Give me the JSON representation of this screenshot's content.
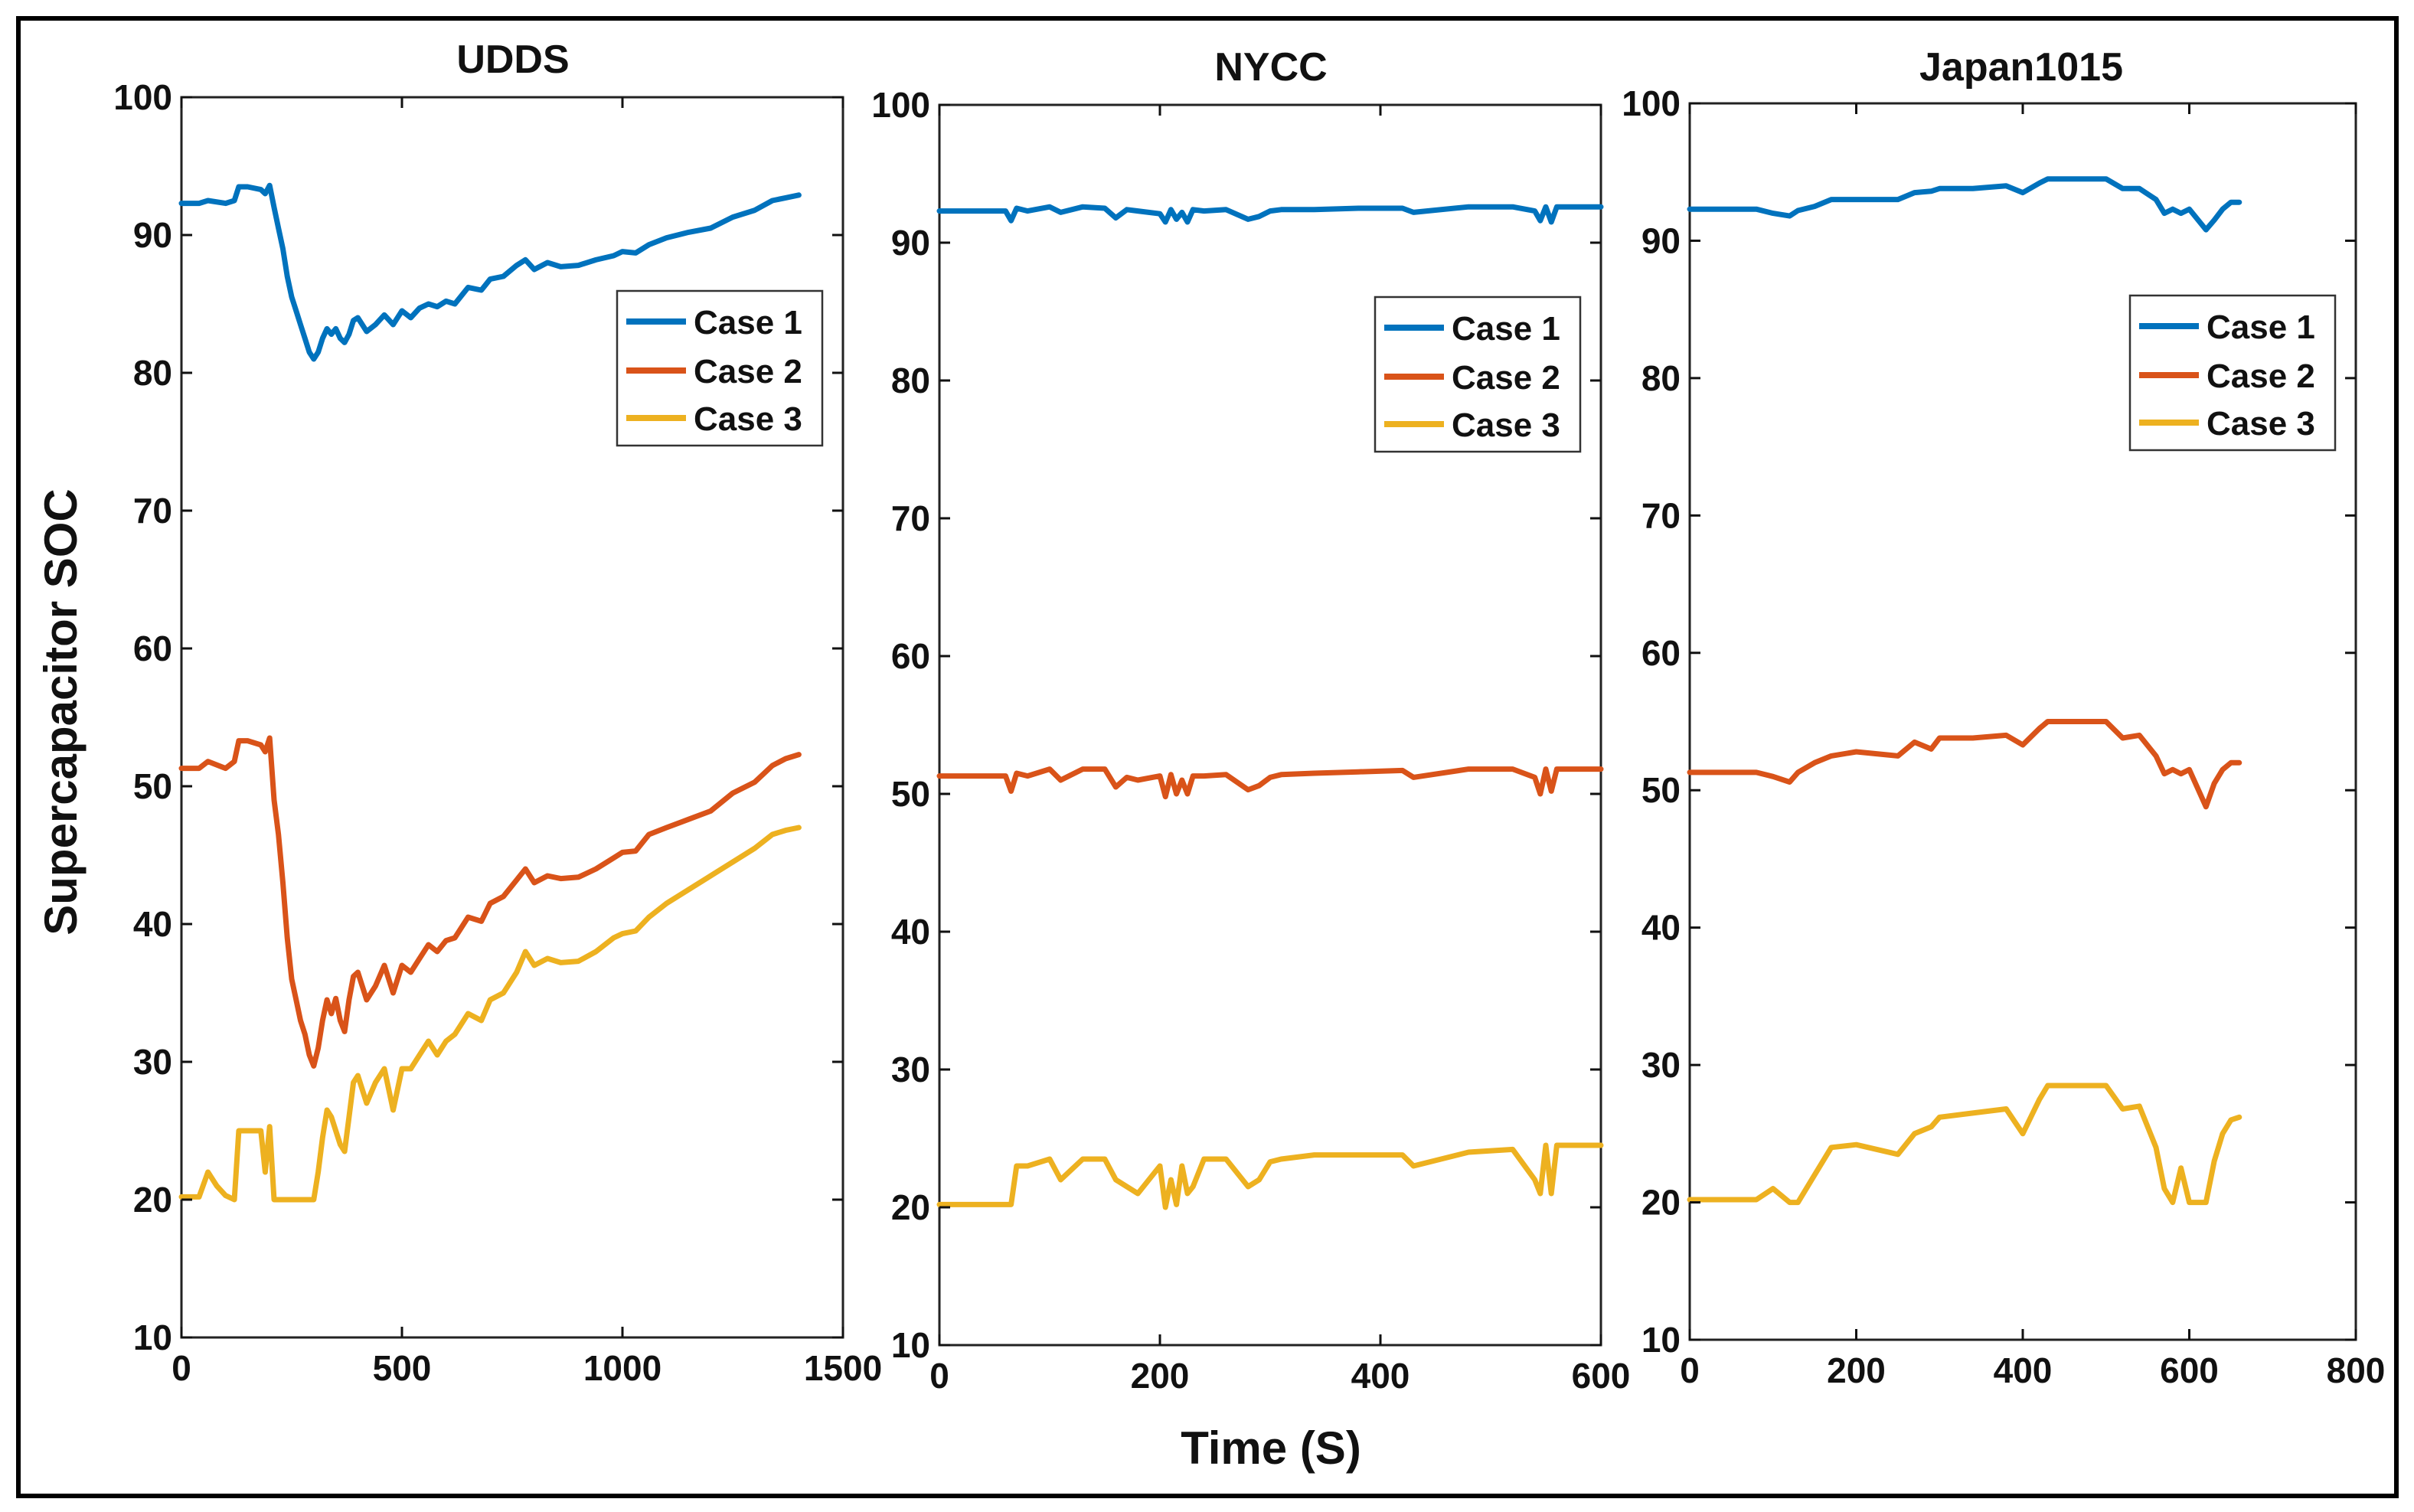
{
  "colors": {
    "case1": "#0072BD",
    "case2": "#D95319",
    "case3": "#EDB120",
    "axis": "#111111",
    "frame": "#000000"
  },
  "figure": {
    "ylabel": "Supercapacitor  SOC",
    "xlabel": "Time (S)"
  },
  "chart_data": [
    {
      "type": "line",
      "title": "UDDS",
      "xlim": [
        0,
        1500
      ],
      "ylim": [
        10,
        100
      ],
      "xticks": [
        0,
        500,
        1000,
        1500
      ],
      "yticks": [
        10,
        20,
        30,
        40,
        50,
        60,
        70,
        80,
        90,
        100
      ],
      "legend": {
        "position": "top-right"
      },
      "series": [
        {
          "name": "Case 1",
          "x": [
            0,
            40,
            60,
            100,
            120,
            130,
            150,
            180,
            190,
            200,
            210,
            220,
            230,
            240,
            250,
            260,
            270,
            280,
            290,
            300,
            310,
            320,
            330,
            340,
            350,
            360,
            370,
            380,
            390,
            400,
            420,
            440,
            460,
            480,
            500,
            520,
            540,
            560,
            580,
            600,
            620,
            650,
            680,
            700,
            730,
            760,
            780,
            800,
            830,
            860,
            900,
            940,
            980,
            1000,
            1030,
            1060,
            1100,
            1150,
            1200,
            1250,
            1300,
            1340,
            1370,
            1400
          ],
          "y": [
            92.3,
            92.3,
            92.5,
            92.3,
            92.5,
            93.5,
            93.5,
            93.3,
            93.0,
            93.6,
            92.0,
            90.5,
            89.0,
            87.0,
            85.5,
            84.5,
            83.5,
            82.5,
            81.5,
            81.0,
            81.5,
            82.5,
            83.2,
            82.8,
            83.2,
            82.5,
            82.2,
            82.8,
            83.8,
            84.0,
            83.0,
            83.5,
            84.2,
            83.5,
            84.5,
            84.0,
            84.7,
            85.0,
            84.8,
            85.2,
            85.0,
            86.2,
            86.0,
            86.8,
            87.0,
            87.8,
            88.2,
            87.5,
            88.0,
            87.7,
            87.8,
            88.2,
            88.5,
            88.8,
            88.7,
            89.3,
            89.8,
            90.2,
            90.5,
            91.3,
            91.8,
            92.5,
            92.7,
            92.9
          ]
        },
        {
          "name": "Case 2",
          "x": [
            0,
            40,
            60,
            100,
            120,
            130,
            150,
            180,
            190,
            200,
            210,
            220,
            230,
            240,
            250,
            260,
            270,
            280,
            290,
            300,
            310,
            320,
            330,
            340,
            350,
            360,
            370,
            380,
            390,
            400,
            420,
            440,
            460,
            480,
            500,
            520,
            540,
            560,
            580,
            600,
            620,
            650,
            680,
            700,
            730,
            760,
            780,
            800,
            830,
            860,
            900,
            940,
            980,
            1000,
            1030,
            1060,
            1100,
            1150,
            1200,
            1250,
            1300,
            1340,
            1370,
            1400
          ],
          "y": [
            51.3,
            51.3,
            51.8,
            51.3,
            51.8,
            53.3,
            53.3,
            53.0,
            52.5,
            53.5,
            49.0,
            46.5,
            43.0,
            39.0,
            36.0,
            34.5,
            33.0,
            32.0,
            30.5,
            29.7,
            31.0,
            33.0,
            34.5,
            33.5,
            34.6,
            33.0,
            32.2,
            34.5,
            36.2,
            36.5,
            34.5,
            35.5,
            37.0,
            35.0,
            37.0,
            36.5,
            37.5,
            38.5,
            38.0,
            38.8,
            39.0,
            40.5,
            40.2,
            41.5,
            42.0,
            43.2,
            44.0,
            43.0,
            43.5,
            43.3,
            43.4,
            44.0,
            44.8,
            45.2,
            45.3,
            46.5,
            47.0,
            47.6,
            48.2,
            49.5,
            50.3,
            51.5,
            52.0,
            52.3
          ]
        },
        {
          "name": "Case 3",
          "x": [
            0,
            40,
            60,
            80,
            100,
            120,
            130,
            150,
            180,
            190,
            200,
            210,
            250,
            300,
            310,
            320,
            330,
            340,
            350,
            360,
            370,
            380,
            390,
            400,
            420,
            440,
            460,
            480,
            500,
            520,
            540,
            560,
            580,
            600,
            620,
            650,
            680,
            700,
            730,
            760,
            780,
            800,
            830,
            860,
            900,
            940,
            980,
            1000,
            1030,
            1060,
            1100,
            1150,
            1200,
            1250,
            1300,
            1340,
            1370,
            1400
          ],
          "y": [
            20.2,
            20.2,
            22.0,
            21.0,
            20.3,
            20.0,
            25.0,
            25.0,
            25.0,
            22.0,
            25.3,
            20.0,
            20.0,
            20.0,
            22.0,
            24.5,
            26.5,
            26.0,
            25.0,
            24.0,
            23.5,
            26.0,
            28.5,
            29.0,
            27.0,
            28.5,
            29.5,
            26.5,
            29.5,
            29.5,
            30.5,
            31.5,
            30.5,
            31.5,
            32.0,
            33.5,
            33.0,
            34.5,
            35.0,
            36.5,
            38.0,
            37.0,
            37.5,
            37.2,
            37.3,
            38.0,
            39.0,
            39.3,
            39.5,
            40.5,
            41.5,
            42.5,
            43.5,
            44.5,
            45.5,
            46.5,
            46.8,
            47.0
          ]
        }
      ]
    },
    {
      "type": "line",
      "title": "NYCC",
      "xlim": [
        0,
        600
      ],
      "ylim": [
        10,
        100
      ],
      "xticks": [
        0,
        200,
        400,
        600
      ],
      "yticks": [
        10,
        20,
        30,
        40,
        50,
        60,
        70,
        80,
        90,
        100
      ],
      "legend": {
        "position": "top-right"
      },
      "series": [
        {
          "name": "Case 1",
          "x": [
            0,
            60,
            65,
            70,
            80,
            100,
            110,
            130,
            150,
            160,
            170,
            180,
            200,
            205,
            210,
            215,
            220,
            225,
            230,
            240,
            260,
            280,
            290,
            300,
            310,
            340,
            380,
            420,
            430,
            480,
            520,
            540,
            545,
            550,
            555,
            560,
            600
          ],
          "y": [
            92.3,
            92.3,
            91.6,
            92.5,
            92.3,
            92.6,
            92.2,
            92.6,
            92.5,
            91.8,
            92.4,
            92.3,
            92.1,
            91.5,
            92.4,
            91.7,
            92.2,
            91.5,
            92.4,
            92.3,
            92.4,
            91.7,
            91.9,
            92.3,
            92.4,
            92.4,
            92.5,
            92.5,
            92.2,
            92.6,
            92.6,
            92.3,
            91.6,
            92.6,
            91.5,
            92.6,
            92.6
          ]
        },
        {
          "name": "Case 2",
          "x": [
            0,
            60,
            65,
            70,
            80,
            100,
            110,
            130,
            150,
            160,
            170,
            180,
            200,
            205,
            210,
            215,
            220,
            225,
            230,
            240,
            260,
            280,
            290,
            300,
            310,
            340,
            380,
            420,
            430,
            480,
            520,
            540,
            545,
            550,
            555,
            560,
            600
          ],
          "y": [
            51.3,
            51.3,
            50.2,
            51.5,
            51.3,
            51.8,
            51.0,
            51.8,
            51.8,
            50.5,
            51.2,
            51.0,
            51.3,
            49.8,
            51.4,
            50.0,
            51.0,
            50.0,
            51.3,
            51.3,
            51.4,
            50.3,
            50.6,
            51.2,
            51.4,
            51.5,
            51.6,
            51.7,
            51.2,
            51.8,
            51.8,
            51.2,
            50.0,
            51.8,
            50.2,
            51.8,
            51.8
          ]
        },
        {
          "name": "Case 3",
          "x": [
            0,
            60,
            65,
            70,
            80,
            100,
            110,
            130,
            150,
            160,
            170,
            180,
            200,
            205,
            210,
            215,
            220,
            225,
            230,
            240,
            260,
            280,
            290,
            300,
            310,
            340,
            380,
            420,
            430,
            480,
            520,
            540,
            545,
            550,
            555,
            560,
            600
          ],
          "y": [
            20.2,
            20.2,
            20.2,
            23.0,
            23.0,
            23.5,
            22.0,
            23.5,
            23.5,
            22.0,
            21.5,
            21.0,
            23.0,
            20.0,
            22.0,
            20.2,
            23.0,
            21.0,
            21.5,
            23.5,
            23.5,
            21.5,
            22.0,
            23.3,
            23.5,
            23.8,
            23.8,
            23.8,
            23.0,
            24.0,
            24.2,
            22.0,
            21.0,
            24.5,
            21.0,
            24.5,
            24.5
          ]
        }
      ]
    },
    {
      "type": "line",
      "title": "Japan1015",
      "xlim": [
        0,
        800
      ],
      "ylim": [
        10,
        100
      ],
      "xticks": [
        0,
        200,
        400,
        600,
        800
      ],
      "yticks": [
        10,
        20,
        30,
        40,
        50,
        60,
        70,
        80,
        90,
        100
      ],
      "legend": {
        "position": "top-right"
      },
      "series": [
        {
          "name": "Case 1",
          "x": [
            0,
            80,
            100,
            120,
            130,
            150,
            170,
            200,
            250,
            270,
            290,
            300,
            340,
            380,
            400,
            420,
            430,
            470,
            500,
            520,
            540,
            560,
            570,
            580,
            590,
            600,
            620,
            630,
            640,
            650,
            660
          ],
          "y": [
            92.3,
            92.3,
            92.0,
            91.8,
            92.2,
            92.5,
            93.0,
            93.0,
            93.0,
            93.5,
            93.6,
            93.8,
            93.8,
            94.0,
            93.5,
            94.2,
            94.5,
            94.5,
            94.5,
            93.8,
            93.8,
            93.0,
            92.0,
            92.3,
            92.0,
            92.3,
            90.8,
            91.5,
            92.3,
            92.8,
            92.8
          ]
        },
        {
          "name": "Case 2",
          "x": [
            0,
            80,
            100,
            120,
            130,
            150,
            170,
            200,
            250,
            270,
            290,
            300,
            340,
            380,
            400,
            420,
            430,
            470,
            500,
            520,
            540,
            560,
            570,
            580,
            590,
            600,
            620,
            630,
            640,
            650,
            660
          ],
          "y": [
            51.3,
            51.3,
            51.0,
            50.6,
            51.3,
            52.0,
            52.5,
            52.8,
            52.5,
            53.5,
            53.0,
            53.8,
            53.8,
            54.0,
            53.3,
            54.5,
            55.0,
            55.0,
            55.0,
            53.8,
            54.0,
            52.5,
            51.2,
            51.5,
            51.2,
            51.5,
            48.8,
            50.5,
            51.5,
            52.0,
            52.0
          ]
        },
        {
          "name": "Case 3",
          "x": [
            0,
            80,
            100,
            120,
            130,
            150,
            170,
            200,
            250,
            270,
            290,
            300,
            340,
            380,
            400,
            420,
            430,
            470,
            500,
            520,
            540,
            560,
            570,
            580,
            590,
            600,
            620,
            630,
            640,
            650,
            660
          ],
          "y": [
            20.2,
            20.2,
            21.0,
            20.0,
            20.0,
            22.0,
            24.0,
            24.2,
            23.5,
            25.0,
            25.5,
            26.2,
            26.5,
            26.8,
            25.0,
            27.5,
            28.5,
            28.5,
            28.5,
            26.8,
            27.0,
            24.0,
            21.0,
            20.0,
            22.5,
            20.0,
            20.0,
            23.0,
            25.0,
            26.0,
            26.2
          ]
        }
      ]
    }
  ]
}
